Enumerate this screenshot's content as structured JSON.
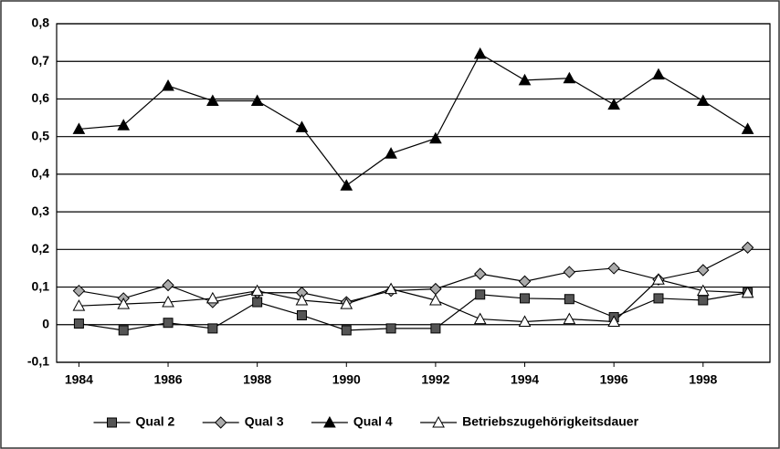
{
  "chart_data": {
    "type": "line",
    "x": [
      1984,
      1985,
      1986,
      1987,
      1988,
      1989,
      1990,
      1991,
      1992,
      1993,
      1994,
      1995,
      1996,
      1997,
      1998,
      1999
    ],
    "xlim": [
      1983.5,
      1999.5
    ],
    "xticks": [
      1984,
      1986,
      1988,
      1990,
      1992,
      1994,
      1996,
      1998
    ],
    "ylim": [
      -0.1,
      0.8
    ],
    "yticks": [
      {
        "value": -0.1,
        "label": "-0,1"
      },
      0,
      {
        "value": 0.1,
        "label": "0,1"
      },
      {
        "value": 0.2,
        "label": "0,2"
      },
      {
        "value": 0.3,
        "label": "0,3"
      },
      {
        "value": 0.4,
        "label": "0,4"
      },
      {
        "value": 0.5,
        "label": "0,5"
      },
      {
        "value": 0.6,
        "label": "0,6"
      },
      {
        "value": 0.7,
        "label": "0,7"
      },
      {
        "value": 0.8,
        "label": "0,8"
      }
    ],
    "grid": true,
    "legend": "bottom",
    "series": [
      {
        "name": "Qual 2",
        "color": "#555555",
        "marker": "square",
        "values": [
          0.003,
          -0.015,
          0.005,
          -0.01,
          0.06,
          0.025,
          -0.015,
          -0.01,
          -0.01,
          0.08,
          0.07,
          0.068,
          0.02,
          0.07,
          0.065,
          0.085
        ]
      },
      {
        "name": "Qual 3",
        "color": "#aaaaaa",
        "marker": "diamond",
        "values": [
          0.09,
          0.07,
          0.105,
          0.06,
          0.085,
          0.085,
          0.06,
          0.09,
          0.095,
          0.135,
          0.115,
          0.14,
          0.15,
          0.12,
          0.145,
          0.205
        ]
      },
      {
        "name": "Qual 4",
        "color": "#000000",
        "marker": "triangle",
        "values": [
          0.52,
          0.53,
          0.635,
          0.595,
          0.595,
          0.525,
          0.37,
          0.455,
          0.495,
          0.72,
          0.65,
          0.655,
          0.585,
          0.665,
          0.595,
          0.52
        ]
      },
      {
        "name": "Betriebszugehörigkeitsdauer",
        "color": "#ffffff",
        "marker": "triangle",
        "values": [
          0.05,
          0.055,
          0.06,
          0.07,
          0.09,
          0.065,
          0.055,
          0.095,
          0.065,
          0.015,
          0.008,
          0.015,
          0.008,
          0.12,
          0.09,
          0.085
        ]
      }
    ]
  }
}
